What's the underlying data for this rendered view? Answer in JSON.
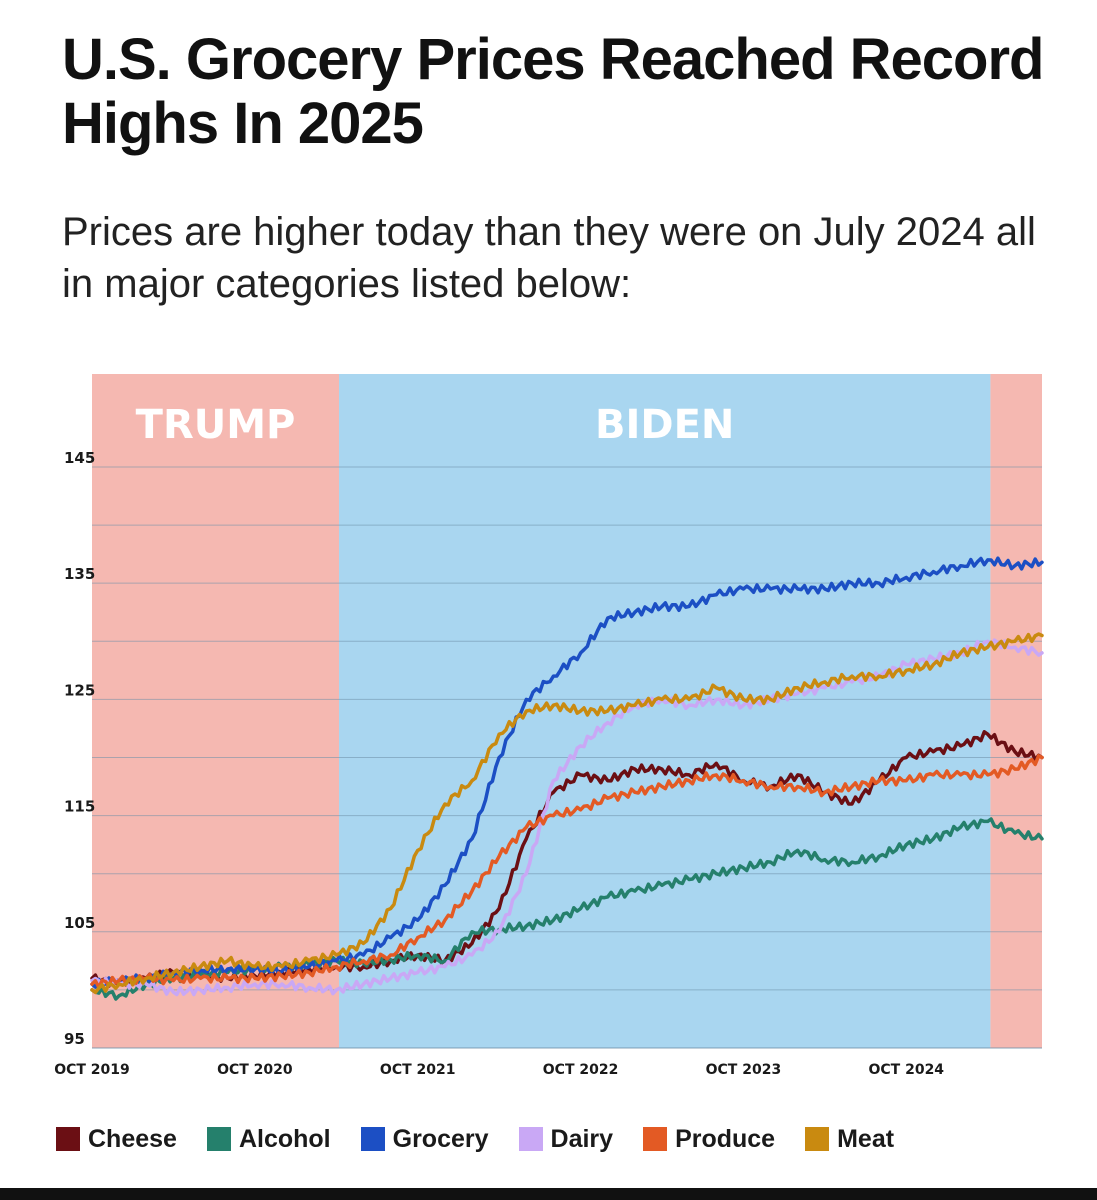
{
  "header": {
    "title": "U.S. Grocery Prices Reached Record Highs In 2025",
    "subtitle": "Prices are higher today than they were on July 2024 all in major categories listed below:"
  },
  "colors": {
    "trump_bg": "#f5b8b1",
    "biden_bg": "#a9d6f0",
    "grid": "#6e90a8",
    "axis_text": "#1a1a1a"
  },
  "chart_data": {
    "type": "line",
    "title": "U.S. Grocery Prices Reached Record Highs In 2025",
    "subtitle": "Prices are higher today than they were on July 2024 all in major categories listed below:",
    "xlabel": "",
    "ylabel": "",
    "x_unit": "months since Oct 2019",
    "xlim": [
      0,
      70
    ],
    "ylim": [
      95,
      153
    ],
    "yticks": [
      95,
      105,
      115,
      125,
      135,
      145
    ],
    "xticks": [
      {
        "x": 0,
        "label": "OCT 2019"
      },
      {
        "x": 12,
        "label": "OCT 2020"
      },
      {
        "x": 24,
        "label": "OCT 2021"
      },
      {
        "x": 36,
        "label": "OCT 2022"
      },
      {
        "x": 48,
        "label": "OCT 2023"
      },
      {
        "x": 60,
        "label": "OCT 2024"
      }
    ],
    "grid": true,
    "legend_position": "bottom",
    "regions": [
      {
        "label": "TRUMP",
        "start": 0,
        "end": 18.2
      },
      {
        "label": "BIDEN",
        "start": 18.2,
        "end": 66.2
      },
      {
        "label": "",
        "start": 66.2,
        "end": 70
      }
    ],
    "x": [
      0,
      2,
      4,
      6,
      8,
      10,
      12,
      14,
      16,
      18,
      20,
      22,
      24,
      26,
      28,
      30,
      32,
      34,
      36,
      38,
      40,
      42,
      44,
      46,
      48,
      50,
      52,
      54,
      56,
      58,
      60,
      62,
      64,
      66,
      68,
      70
    ],
    "series": [
      {
        "name": "Cheese",
        "color": "#6b0f14",
        "values": [
          101,
          100.5,
          101,
          101.5,
          101.2,
          101,
          101.2,
          101.5,
          101.8,
          102,
          102,
          102.5,
          103,
          102.5,
          104,
          107,
          113,
          117,
          118.5,
          118,
          119,
          119,
          118.5,
          119.5,
          118,
          117.5,
          118.5,
          117,
          116,
          118,
          120,
          120.5,
          121,
          122,
          120.5,
          120
        ]
      },
      {
        "name": "Alcohol",
        "color": "#25806c",
        "values": [
          100,
          99.5,
          100.5,
          101,
          101.3,
          101.5,
          101.8,
          102,
          102.2,
          102.5,
          102.3,
          102.6,
          103,
          102.5,
          105,
          105.2,
          105.5,
          106,
          107,
          108,
          108.5,
          109,
          109.5,
          110,
          110.5,
          111,
          112,
          111.2,
          111,
          111.5,
          112.5,
          113,
          114,
          114.5,
          113.5,
          113
        ]
      },
      {
        "name": "Grocery",
        "color": "#1c4fc4",
        "values": [
          100.5,
          100.8,
          101,
          101.5,
          101.7,
          101.8,
          101.8,
          101.6,
          102,
          102.5,
          103,
          104.5,
          106,
          109,
          113,
          120,
          125,
          127,
          129,
          132,
          132.5,
          133,
          133,
          134,
          134.5,
          134.5,
          134.5,
          134.5,
          135,
          135,
          135.5,
          136,
          136.5,
          137,
          136.5,
          136.8
        ]
      },
      {
        "name": "Dairy",
        "color": "#c9a8f5",
        "values": [
          100.8,
          100.5,
          100.5,
          99.8,
          100,
          100.2,
          100.5,
          100.5,
          100.2,
          100,
          100.5,
          101,
          101.5,
          102,
          103,
          105,
          110,
          118,
          121,
          123,
          124.5,
          125,
          124.5,
          125,
          124.5,
          125,
          125.5,
          126,
          126.5,
          127,
          128,
          128.5,
          129,
          130,
          129.5,
          129
        ]
      },
      {
        "name": "Produce",
        "color": "#e35a24",
        "values": [
          100.5,
          100.8,
          101,
          100.8,
          101,
          101,
          101,
          101.2,
          101.5,
          102,
          102.5,
          103,
          104.5,
          106,
          108.5,
          111.5,
          114,
          115,
          115.5,
          116.5,
          117,
          117.5,
          118,
          118.5,
          118,
          117.5,
          117.5,
          117,
          117.5,
          118,
          118,
          118.5,
          118.5,
          118.5,
          119,
          120
        ]
      },
      {
        "name": "Meat",
        "color": "#c98a10",
        "values": [
          100,
          100.5,
          101,
          101.5,
          102,
          102.5,
          102,
          102,
          102.5,
          103,
          104,
          107,
          112,
          116,
          118,
          122,
          124,
          124.5,
          124,
          124,
          124.5,
          125,
          125,
          126,
          125,
          125,
          126,
          126.5,
          127,
          127,
          127.5,
          128,
          129,
          129.5,
          130,
          130.5
        ]
      }
    ]
  }
}
